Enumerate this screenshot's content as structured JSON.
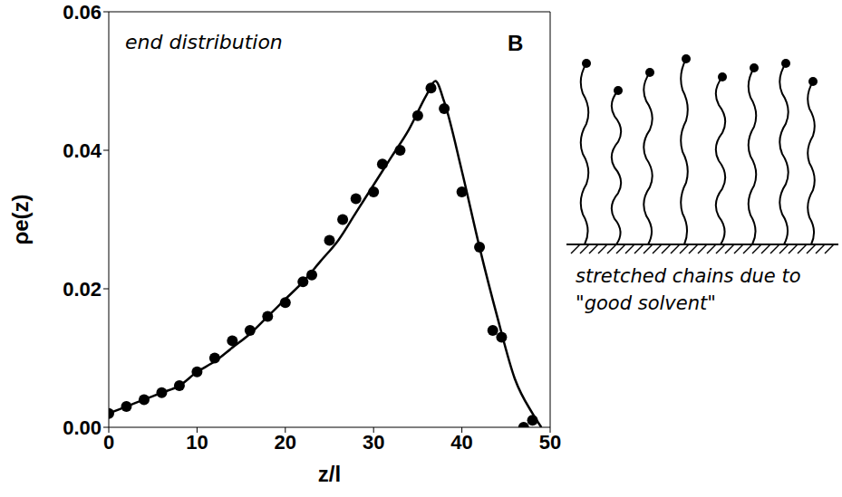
{
  "chart_data": {
    "type": "line_scatter",
    "panel_letter": "B",
    "annotation": "end distribution",
    "caption": "stretched chains due to \"good solvent\"",
    "x_label": "z/l",
    "y_label": "ρe(z)",
    "xlim": [
      0,
      50
    ],
    "xticks": [
      0,
      10,
      20,
      30,
      40,
      50
    ],
    "ylim": [
      0,
      0.06
    ],
    "yticks": [
      {
        "value": 0,
        "label": "0.00"
      },
      {
        "value": 0.02,
        "label": "0.02"
      },
      {
        "value": 0.04,
        "label": "0.04"
      },
      {
        "value": 0.06,
        "label": "0.06"
      }
    ],
    "grid": false,
    "series": [
      {
        "type": "line",
        "color": "#000000",
        "line_style": "solid",
        "marker": "none",
        "x": [
          0,
          2,
          4,
          6,
          8,
          10,
          12,
          14,
          16,
          18,
          20,
          22,
          24,
          26,
          28,
          30,
          32,
          34,
          36,
          37,
          38,
          40,
          42,
          44,
          46,
          48,
          49
        ],
        "values": [
          0.002,
          0.003,
          0.004,
          0.005,
          0.006,
          0.008,
          0.0095,
          0.0115,
          0.0135,
          0.016,
          0.0185,
          0.021,
          0.024,
          0.027,
          0.031,
          0.035,
          0.039,
          0.043,
          0.048,
          0.05,
          0.047,
          0.037,
          0.026,
          0.016,
          0.007,
          0.002,
          0
        ]
      },
      {
        "type": "scatter",
        "color": "#000000",
        "marker": "circle",
        "x": [
          0,
          2,
          4,
          6,
          8,
          10,
          12,
          14,
          16,
          18,
          20,
          22,
          23,
          25,
          26.5,
          28,
          30,
          31,
          33,
          35,
          36.5,
          38,
          40,
          42,
          43.5,
          44.5,
          47,
          48
        ],
        "values": [
          0.002,
          0.003,
          0.004,
          0.005,
          0.006,
          0.008,
          0.01,
          0.0125,
          0.014,
          0.016,
          0.018,
          0.021,
          0.022,
          0.027,
          0.03,
          0.033,
          0.034,
          0.038,
          0.04,
          0.045,
          0.049,
          0.046,
          0.034,
          0.026,
          0.014,
          0.013,
          0,
          0.001
        ]
      }
    ]
  }
}
